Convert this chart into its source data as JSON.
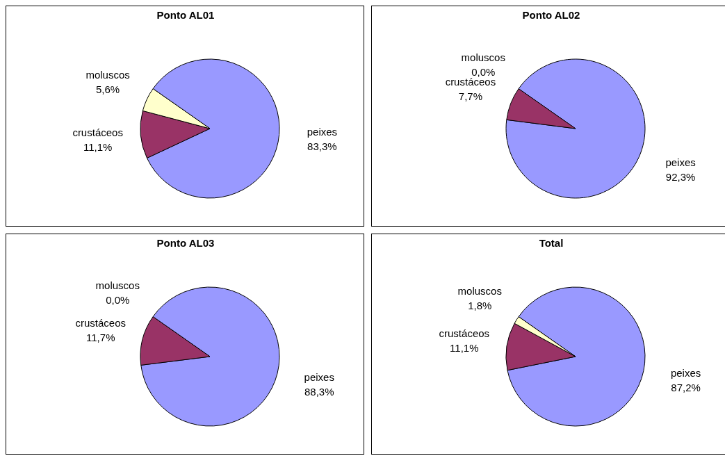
{
  "chart_data": [
    {
      "type": "pie",
      "title": "Ponto AL01",
      "categories": [
        "peixes",
        "crustáceos",
        "moluscos"
      ],
      "values": [
        83.3,
        11.1,
        5.6
      ],
      "colors": [
        "#9999ff",
        "#993366",
        "#ffffcc"
      ],
      "value_labels": [
        "83,3%",
        "11,1%",
        "5,6%"
      ]
    },
    {
      "type": "pie",
      "title": "Ponto AL02",
      "categories": [
        "peixes",
        "crustáceos",
        "moluscos"
      ],
      "values": [
        92.3,
        7.7,
        0.0
      ],
      "colors": [
        "#9999ff",
        "#993366",
        "#ffffcc"
      ],
      "value_labels": [
        "92,3%",
        "7,7%",
        "0,0%"
      ]
    },
    {
      "type": "pie",
      "title": "Ponto AL03",
      "categories": [
        "peixes",
        "crustáceos",
        "moluscos"
      ],
      "values": [
        88.3,
        11.7,
        0.0
      ],
      "colors": [
        "#9999ff",
        "#993366",
        "#ffffcc"
      ],
      "value_labels": [
        "88,3%",
        "11,7%",
        "0,0%"
      ]
    },
    {
      "type": "pie",
      "title": "Total",
      "categories": [
        "peixes",
        "crustáceos",
        "moluscos"
      ],
      "values": [
        87.2,
        11.1,
        1.8
      ],
      "colors": [
        "#9999ff",
        "#993366",
        "#ffffcc"
      ],
      "value_labels": [
        "87,2%",
        "11,1%",
        "1,8%"
      ]
    }
  ]
}
